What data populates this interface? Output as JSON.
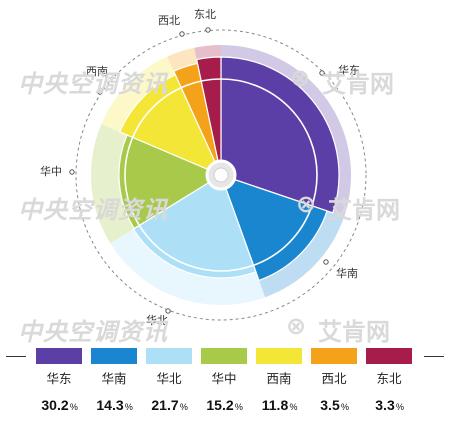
{
  "chart_data": {
    "type": "pie",
    "title": "",
    "categories": [
      "华东",
      "华南",
      "华北",
      "华中",
      "西南",
      "西北",
      "东北"
    ],
    "values": [
      30.2,
      14.3,
      21.7,
      15.2,
      11.8,
      3.5,
      3.3
    ],
    "value_labels": [
      "30.2",
      "14.3",
      "21.7",
      "15.2",
      "11.8",
      "3.5",
      "3.3"
    ],
    "unit": "%",
    "colors": [
      "#5b3fa6",
      "#1a86d0",
      "#ade0f7",
      "#a8c94a",
      "#f3e637",
      "#f3a21a",
      "#a61c4a"
    ],
    "legend_position": "bottom"
  },
  "watermarks": {
    "left": "中央空调资讯",
    "right_symbol": "⊗",
    "right": "艾肯网"
  }
}
